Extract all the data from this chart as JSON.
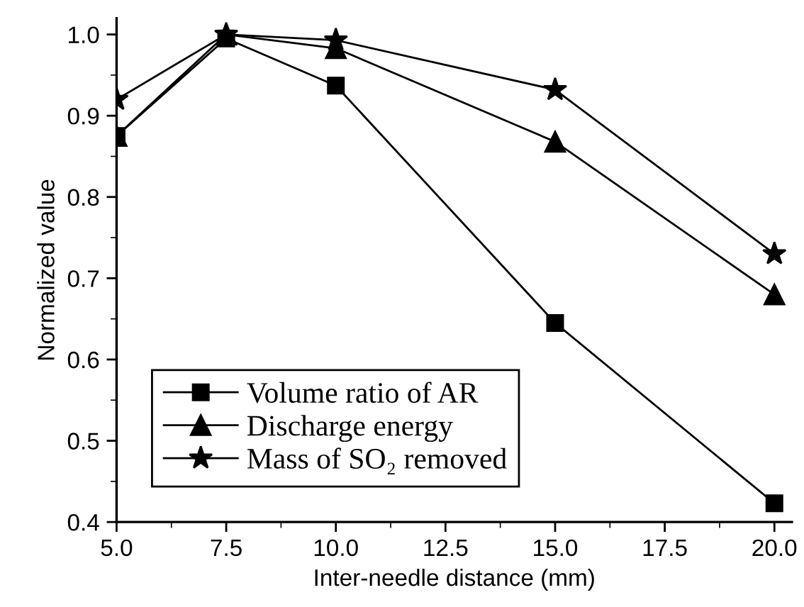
{
  "chart_data": {
    "type": "line",
    "xlabel": "Inter-needle distance (mm)",
    "ylabel": "Normalized value",
    "x": [
      5.0,
      7.5,
      10.0,
      15.0,
      20.0
    ],
    "series": [
      {
        "name": "Volume ratio of AR",
        "color": "#000000",
        "marker": "square",
        "values": [
          0.875,
          0.995,
          0.937,
          0.645,
          0.423
        ]
      },
      {
        "name": "Discharge energy",
        "color": "#000000",
        "marker": "triangle",
        "values": [
          0.875,
          1.0,
          0.983,
          0.868,
          0.68
        ]
      },
      {
        "name": "Mass of SO₂ removed",
        "color": "#000000",
        "marker": "star",
        "values": [
          0.92,
          1.0,
          0.993,
          0.932,
          0.73
        ]
      }
    ],
    "xlim": [
      5.0,
      20.4
    ],
    "ylim": [
      0.4,
      1.02
    ],
    "xticks": [
      {
        "value": 5.0,
        "label": "5.0"
      },
      7.5,
      {
        "value": 10.0,
        "label": "10.0"
      },
      12.5,
      {
        "value": 15.0,
        "label": "15.0"
      },
      17.5,
      {
        "value": 20.0,
        "label": "20.0"
      }
    ],
    "yticks": [
      0.4,
      0.5,
      0.6,
      0.7,
      0.8,
      0.9,
      {
        "value": 1.0,
        "label": "1.0"
      }
    ],
    "grid": false,
    "legend": "bottom left",
    "line_style": "solid"
  }
}
